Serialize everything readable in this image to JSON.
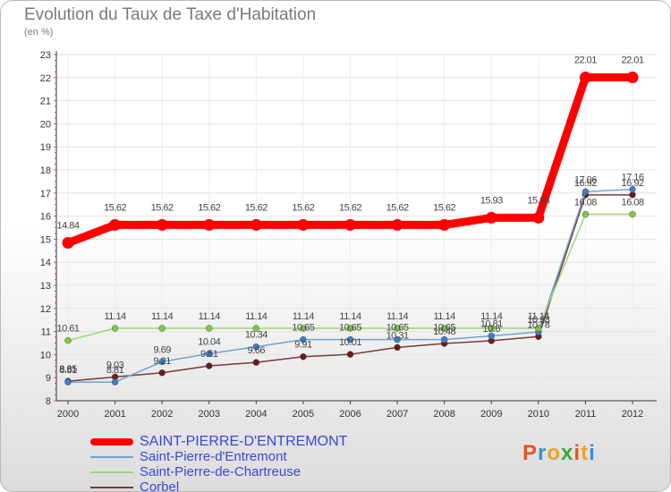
{
  "header": {
    "title": "Evolution du Taux de Taxe d'Habitation",
    "subtitle": "(en %)"
  },
  "logo": {
    "text": "Proxiti",
    "colors": [
      "#e8541e",
      "#3a8fd0",
      "#f0a020",
      "#3fa63c",
      "#e8541e",
      "#f0a020",
      "#3a8fd0"
    ]
  },
  "chart_data": {
    "type": "line",
    "title": "Evolution du Taux de Taxe d'Habitation",
    "subtitle": "(en %)",
    "xlabel": "",
    "ylabel": "",
    "x": [
      "2000",
      "2001",
      "2002",
      "2003",
      "2004",
      "2005",
      "2006",
      "2007",
      "2008",
      "2009",
      "2010",
      "2011",
      "2012"
    ],
    "ylim": [
      8,
      23
    ],
    "yticks": [
      8,
      9,
      10,
      11,
      12,
      13,
      14,
      15,
      16,
      17,
      18,
      19,
      20,
      21,
      22,
      23
    ],
    "grid": true,
    "legend_position": "bottom-left",
    "series": [
      {
        "name": "SAINT-PIERRE-D'ENTREMONT",
        "color": "#ff0000",
        "values": [
          14.84,
          15.62,
          15.62,
          15.62,
          15.62,
          15.62,
          15.62,
          15.62,
          15.62,
          15.93,
          15.93,
          22.01,
          22.01
        ],
        "labels": [
          "14.84",
          "15.62",
          "15.62",
          "15.62",
          "15.62",
          "15.62",
          "15.62",
          "15.62",
          "15.62",
          "15.93",
          "15.93",
          "22.01",
          "22.01"
        ]
      },
      {
        "name": "Saint-Pierre-d'Entremont",
        "color": "#6fa3d6",
        "marker": "#3a7fc8",
        "values": [
          8.81,
          8.81,
          9.69,
          10.04,
          10.34,
          10.65,
          10.65,
          10.65,
          10.65,
          10.81,
          10.98,
          17.06,
          17.16
        ],
        "labels": [
          "8.81",
          "8.81",
          "9.69",
          "10.04",
          "10.34",
          "10.65",
          "10.65",
          "10.65",
          "10.65",
          "10.81",
          "10.98",
          "17.06",
          "17.16"
        ]
      },
      {
        "name": "Saint-Pierre-de-Chartreuse",
        "color": "#9ed67a",
        "marker": "#7ccc3c",
        "values": [
          10.61,
          11.14,
          11.14,
          11.14,
          11.14,
          11.14,
          11.14,
          11.14,
          11.14,
          11.14,
          11.14,
          16.08,
          16.08
        ],
        "labels": [
          "10.61",
          "11.14",
          "11.14",
          "11.14",
          "11.14",
          "11.14",
          "11.14",
          "11.14",
          "11.14",
          "11.14",
          "11.14",
          "16.08",
          "16.08"
        ]
      },
      {
        "name": "Corbel",
        "color": "#7a3a3a",
        "marker": "#6a1a1a",
        "values": [
          8.85,
          9.03,
          9.21,
          9.51,
          9.66,
          9.91,
          10.01,
          10.31,
          10.48,
          10.6,
          10.78,
          16.92,
          16.92
        ],
        "labels": [
          "8.85",
          "9.03",
          "9.21",
          "9.51",
          "9.66",
          "9.91",
          "10.01",
          "10.31",
          "10.48",
          "10.6",
          "10.78",
          "16.92",
          "16.92"
        ]
      }
    ]
  }
}
